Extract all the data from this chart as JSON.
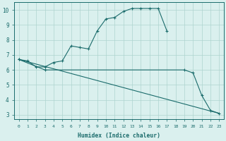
{
  "line1_x": [
    0,
    1,
    2,
    3,
    4,
    5,
    6,
    7,
    8,
    9,
    10,
    11,
    12,
    13,
    14,
    15,
    16,
    17
  ],
  "line1_y": [
    6.7,
    6.6,
    6.2,
    6.2,
    6.5,
    6.6,
    7.6,
    7.5,
    7.4,
    8.6,
    9.4,
    9.5,
    9.9,
    10.1,
    10.1,
    10.1,
    10.1,
    8.6
  ],
  "line2_x": [
    0,
    3,
    19,
    20,
    21,
    22,
    23
  ],
  "line2_y": [
    6.7,
    6.0,
    6.0,
    5.8,
    4.3,
    3.3,
    3.1
  ],
  "line3_x": [
    0,
    23
  ],
  "line3_y": [
    6.7,
    3.1
  ],
  "bg_color": "#daf0ee",
  "line_color": "#1a6b6b",
  "grid_color": "#aed4cf",
  "xlabel": "Humidex (Indice chaleur)",
  "xlim_min": -0.5,
  "xlim_max": 23.5,
  "ylim_min": 2.7,
  "ylim_max": 10.5,
  "yticks": [
    3,
    4,
    5,
    6,
    7,
    8,
    9,
    10
  ],
  "xticks": [
    0,
    1,
    2,
    3,
    4,
    5,
    6,
    7,
    8,
    9,
    10,
    11,
    12,
    13,
    14,
    15,
    16,
    17,
    18,
    19,
    20,
    21,
    22,
    23
  ]
}
